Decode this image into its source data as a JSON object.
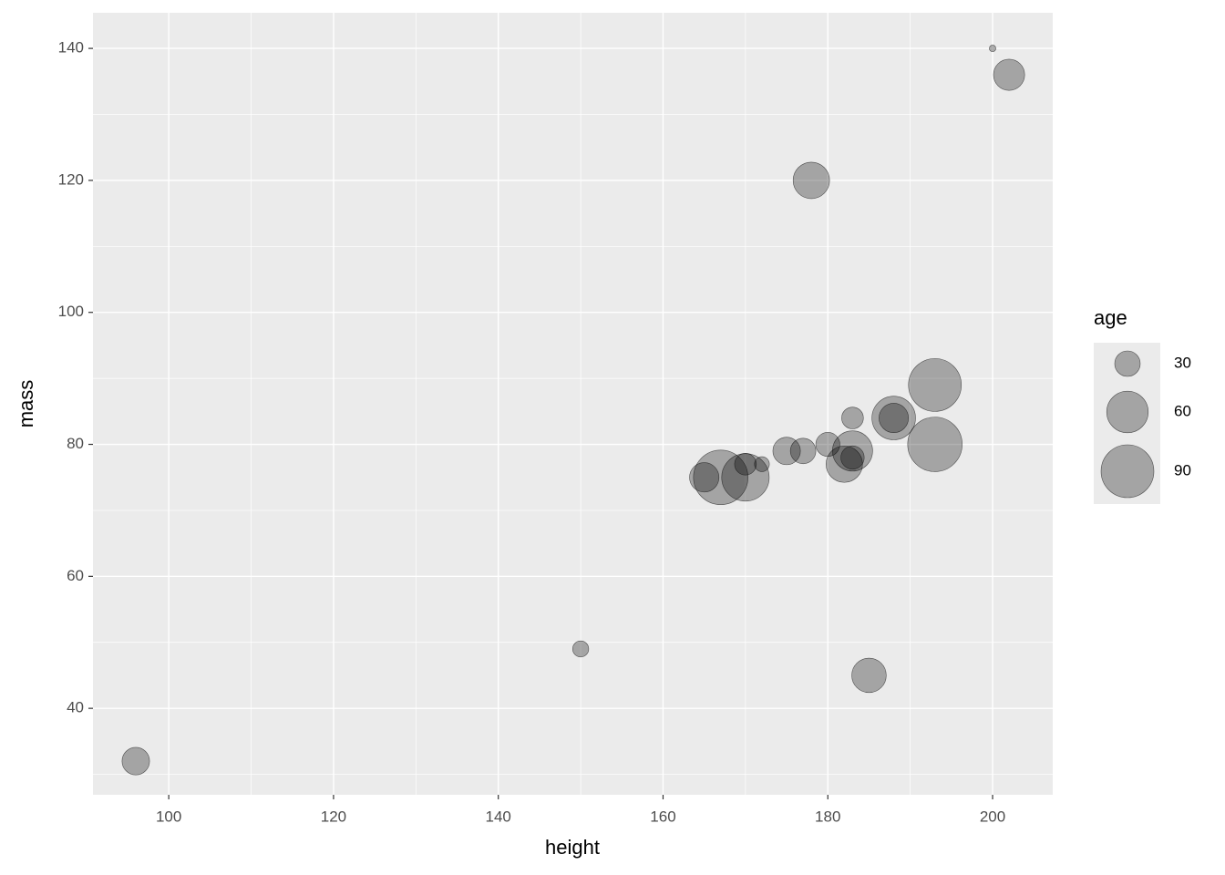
{
  "chart_data": {
    "type": "scatter",
    "x_label": "height",
    "y_label": "mass",
    "x": [
      96,
      150,
      185,
      178,
      202,
      200,
      167,
      170,
      165,
      170,
      172,
      175,
      177,
      180,
      182,
      183,
      183,
      183,
      188,
      188,
      193,
      193
    ],
    "values": [
      32,
      49,
      45,
      120,
      136,
      140,
      75,
      75,
      75,
      77,
      77,
      79,
      79,
      80,
      77,
      79,
      78,
      84,
      84,
      84,
      89,
      80
    ],
    "sizes": [
      33,
      19,
      45,
      49,
      39,
      13,
      95,
      75,
      36,
      25,
      18,
      33,
      30,
      28,
      49,
      57,
      27,
      25,
      65,
      36,
      90,
      95
    ],
    "color": "#000000",
    "alpha": 0.3,
    "xlim": [
      90.8,
      207.3
    ],
    "ylim": [
      26.9,
      145.4
    ],
    "xticks": [
      100,
      120,
      140,
      160,
      180,
      200
    ],
    "yticks": [
      40,
      60,
      80,
      100,
      120,
      140
    ],
    "grid": true,
    "size_legend": {
      "title": "age",
      "values": [
        30,
        60,
        90
      ]
    }
  }
}
